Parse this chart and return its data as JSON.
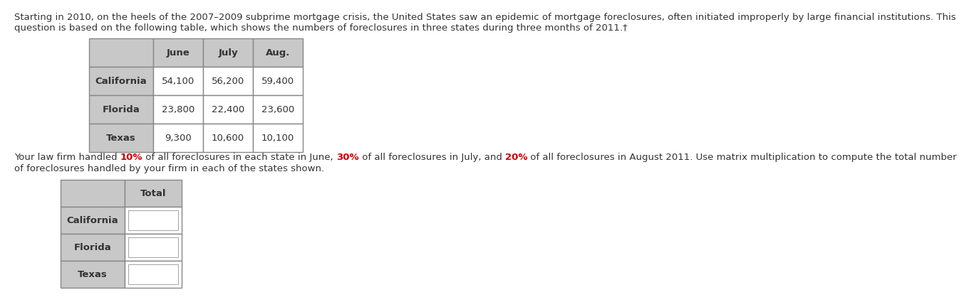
{
  "para1": "Starting in 2010, on the heels of the 2007–2009 subprime mortgage crisis, the United States saw an epidemic of mortgage foreclosures, often initiated improperly by large financial institutions. This\nquestion is based on the following table, which shows the numbers of foreclosures in three states during three months of 2011.†",
  "table1_headers": [
    "",
    "June",
    "July",
    "Aug."
  ],
  "table1_rows": [
    [
      "California",
      "54,100",
      "56,200",
      "59,400"
    ],
    [
      "Florida",
      "23,800",
      "22,400",
      "23,600"
    ],
    [
      "Texas",
      "9,300",
      "10,600",
      "10,100"
    ]
  ],
  "para2_parts": [
    {
      "text": "Your law firm handled ",
      "color": "#333333",
      "bold": false
    },
    {
      "text": "10%",
      "color": "#cc0000",
      "bold": true
    },
    {
      "text": " of all foreclosures in each state in June, ",
      "color": "#333333",
      "bold": false
    },
    {
      "text": "30%",
      "color": "#cc0000",
      "bold": true
    },
    {
      "text": " of all foreclosures in July, and ",
      "color": "#333333",
      "bold": false
    },
    {
      "text": "20%",
      "color": "#cc0000",
      "bold": true
    },
    {
      "text": " of all foreclosures in August 2011. Use matrix multiplication to compute the total number",
      "color": "#333333",
      "bold": false
    }
  ],
  "para2_line2": "of foreclosures handled by your firm in each of the states shown.",
  "table2_headers": [
    "",
    "Total"
  ],
  "table2_rows": [
    [
      "California",
      ""
    ],
    [
      "Florida",
      ""
    ],
    [
      "Texas",
      ""
    ]
  ],
  "header_bg": "#c8c8c8",
  "row_label_bg": "#c8c8c8",
  "data_cell_bg": "#ffffff",
  "answer_box_bg": "#f0f0f0",
  "cell_border": "#888888",
  "text_color": "#333333",
  "font_size": 9.5
}
